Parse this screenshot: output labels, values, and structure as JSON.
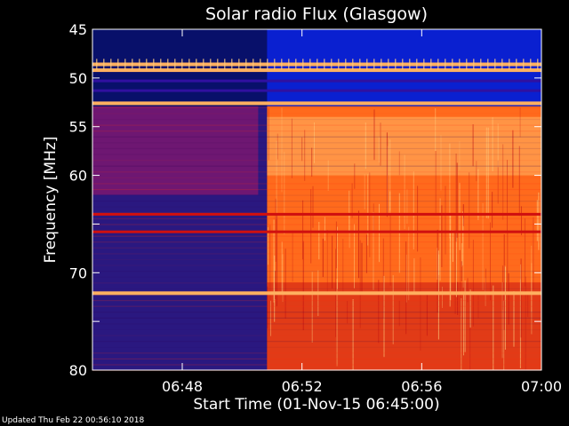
{
  "chart_data": {
    "type": "heatmap",
    "title": "Solar radio Flux (Glasgow)",
    "xlabel": "Start Time (01-Nov-15 06:45:00)",
    "ylabel": "Frequency [MHz]",
    "x_ticks": [
      "06:48",
      "06:52",
      "06:56",
      "07:00"
    ],
    "x_range": [
      "06:45",
      "07:00"
    ],
    "y_ticks": [
      45,
      50,
      55,
      60,
      65,
      70,
      75,
      80
    ],
    "y_tick_labels": [
      "45",
      "50",
      "55",
      "60",
      "",
      "70",
      "",
      "80"
    ],
    "y_range": [
      45,
      80
    ],
    "y_inverted": true,
    "onset_time": "06:50:50",
    "features": {
      "interference_bands_mhz": [
        48.6,
        49.2,
        52.6,
        72.1
      ],
      "dark_bands_mhz": [
        50.3,
        51.3,
        64.0,
        65.8
      ]
    },
    "colors": {
      "background_low": "#2a1880",
      "background_mid": "#c81414",
      "burst_high": "#ff6a1c",
      "burst_peak": "#ffb060",
      "band_low": "#0a20d0"
    }
  },
  "footer": {
    "updated": "Updated Thu Feb 22 00:56:10 2018"
  }
}
